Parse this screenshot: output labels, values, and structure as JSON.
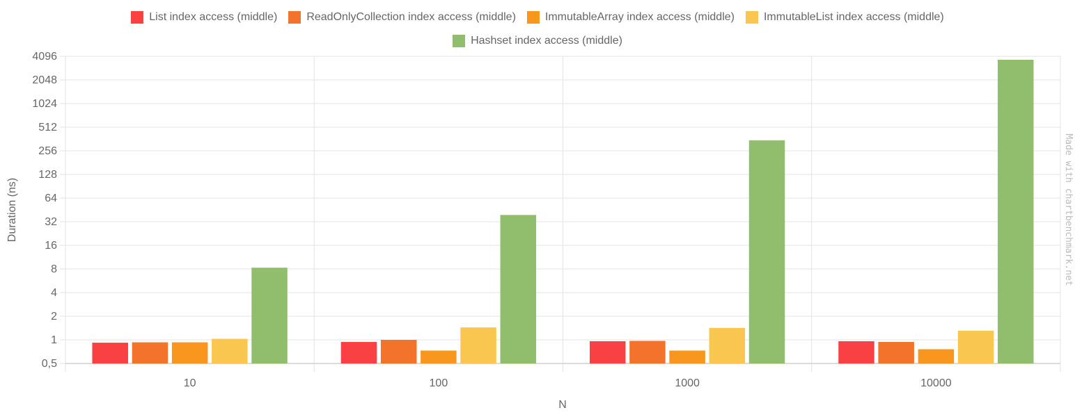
{
  "chart_data": {
    "type": "bar",
    "title": "",
    "xlabel": "N",
    "ylabel": "Duration (ns)",
    "yscale": "log2",
    "ylim": [
      0.5,
      4096
    ],
    "yticks": [
      "0,5",
      "1",
      "2",
      "4",
      "8",
      "16",
      "32",
      "64",
      "128",
      "256",
      "512",
      "1024",
      "2048",
      "4096"
    ],
    "ytick_values": [
      0.5,
      1,
      2,
      4,
      8,
      16,
      32,
      64,
      128,
      256,
      512,
      1024,
      2048,
      4096
    ],
    "categories": [
      "10",
      "100",
      "1000",
      "10000"
    ],
    "grid": true,
    "legend_position": "top",
    "series": [
      {
        "name": "List index access (middle)",
        "color": "#f94144",
        "values": [
          0.92,
          0.94,
          0.96,
          0.96
        ]
      },
      {
        "name": "ReadOnlyCollection index access (middle)",
        "color": "#f3722c",
        "values": [
          0.93,
          1.0,
          0.97,
          0.94
        ]
      },
      {
        "name": "ImmutableArray index access (middle)",
        "color": "#f8961e",
        "values": [
          0.93,
          0.73,
          0.73,
          0.76
        ]
      },
      {
        "name": "ImmutableList index access (middle)",
        "color": "#f9c74f",
        "values": [
          1.03,
          1.44,
          1.42,
          1.31
        ]
      },
      {
        "name": "Hashset index access (middle)",
        "color": "#90be6d",
        "values": [
          8.3,
          39,
          348,
          3700
        ]
      }
    ],
    "watermark": "Made with chartbenchmark.net"
  },
  "legend": {
    "row1": [
      {
        "label": "List index access (middle)",
        "color": "#f94144"
      },
      {
        "label": "ReadOnlyCollection index access (middle)",
        "color": "#f3722c"
      },
      {
        "label": "ImmutableArray index access (middle)",
        "color": "#f8961e"
      },
      {
        "label": "ImmutableList index access (middle)",
        "color": "#f9c74f"
      }
    ],
    "row2": [
      {
        "label": "Hashset index access (middle)",
        "color": "#90be6d"
      }
    ]
  }
}
